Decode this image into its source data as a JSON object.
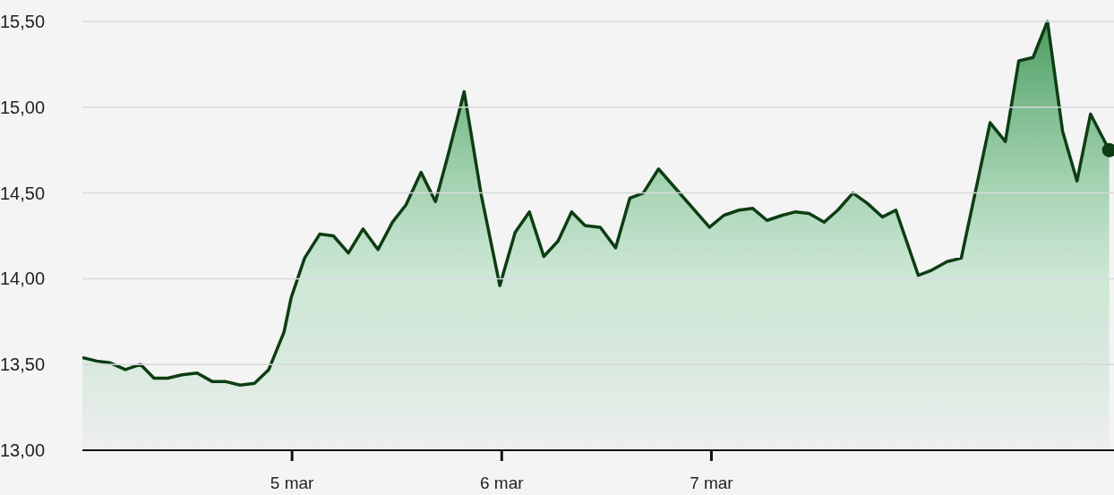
{
  "chart_data": {
    "type": "area",
    "x": [
      "--03-04T00:00",
      "--03-04T01:38",
      "--03-04T03:10",
      "--03-04T04:55",
      "--03-04T06:40",
      "--03-04T08:12",
      "--03-04T09:45",
      "--03-04T11:23",
      "--03-04T13:08",
      "--03-04T14:53",
      "--03-04T16:25",
      "--03-04T18:03",
      "--03-04T19:42",
      "--03-04T21:20",
      "--03-04T23:05",
      "--03-04T23:54",
      "--03-05T01:26",
      "--03-05T03:10",
      "--03-05T04:44",
      "--03-05T06:27",
      "--03-05T08:07",
      "--03-05T09:50",
      "--03-05T11:30",
      "--03-05T13:02",
      "--03-05T14:46",
      "--03-05T16:25",
      "--03-05T17:51",
      "--03-05T19:42",
      "--03-05T21:39",
      "--03-05T23:47",
      "--03-06T01:32",
      "--03-06T03:10",
      "--03-06T04:49",
      "--03-06T06:27",
      "--03-06T08:00",
      "--03-06T09:32",
      "--03-06T11:17",
      "--03-06T13:02",
      "--03-06T14:40",
      "--03-06T16:12",
      "--03-06T17:57",
      "--03-06T23:47",
      "--03-07T01:26",
      "--03-07T03:10",
      "--03-07T04:44",
      "--03-07T06:22",
      "--03-07T08:07",
      "--03-07T09:39",
      "--03-07T11:11",
      "--03-07T12:55",
      "--03-07T14:28",
      "--03-07T16:12",
      "--03-07T17:51",
      "--03-07T19:35",
      "--03-07T21:07",
      "--03-07T23:41",
      "--03-08T01:13",
      "--03-08T02:59",
      "--03-08T04:36",
      "--03-08T07:54",
      "--03-08T09:39",
      "--03-08T11:11",
      "--03-08T12:49",
      "--03-08T14:28",
      "--03-08T16:12",
      "--03-08T17:51",
      "--03-08T19:24",
      "--03-08T21:32"
    ],
    "series": [
      {
        "color": "#0d3d12",
        "values": [
          13.54,
          13.52,
          13.51,
          13.47,
          13.5,
          13.42,
          13.42,
          13.44,
          13.45,
          13.4,
          13.4,
          13.38,
          13.39,
          13.47,
          13.69,
          13.89,
          14.12,
          14.26,
          14.25,
          14.15,
          14.29,
          14.17,
          14.33,
          14.43,
          14.62,
          14.45,
          14.72,
          15.09,
          14.49,
          13.96,
          14.27,
          14.39,
          14.13,
          14.22,
          14.39,
          14.31,
          14.3,
          14.18,
          14.47,
          14.5,
          14.64,
          14.3,
          14.37,
          14.4,
          14.41,
          14.34,
          14.37,
          14.39,
          14.38,
          14.33,
          14.4,
          14.5,
          14.44,
          14.36,
          14.4,
          14.02,
          14.05,
          14.1,
          14.12,
          14.91,
          14.8,
          15.27,
          15.29,
          15.5,
          14.86,
          14.57,
          14.96,
          14.75
        ]
      }
    ],
    "xlim": [
      "--03-04T00:00",
      "--03-08T22:05"
    ],
    "xticks": [
      {
        "value": "--03-05",
        "label": "5 mar"
      },
      {
        "value": "--03-06",
        "label": "6 mar"
      },
      {
        "value": "--03-07",
        "label": "7 mar"
      }
    ],
    "ylim": [
      13,
      15.5
    ],
    "yticks": [
      {
        "value": 13,
        "label": "13,00"
      },
      {
        "value": 13.5,
        "label": "13,50"
      },
      {
        "value": 14,
        "label": "14,00"
      },
      {
        "value": 14.5,
        "label": "14,50"
      },
      {
        "value": 15,
        "label": "15,00"
      },
      {
        "value": 15.5,
        "label": "15,50"
      }
    ],
    "grid": "y"
  }
}
